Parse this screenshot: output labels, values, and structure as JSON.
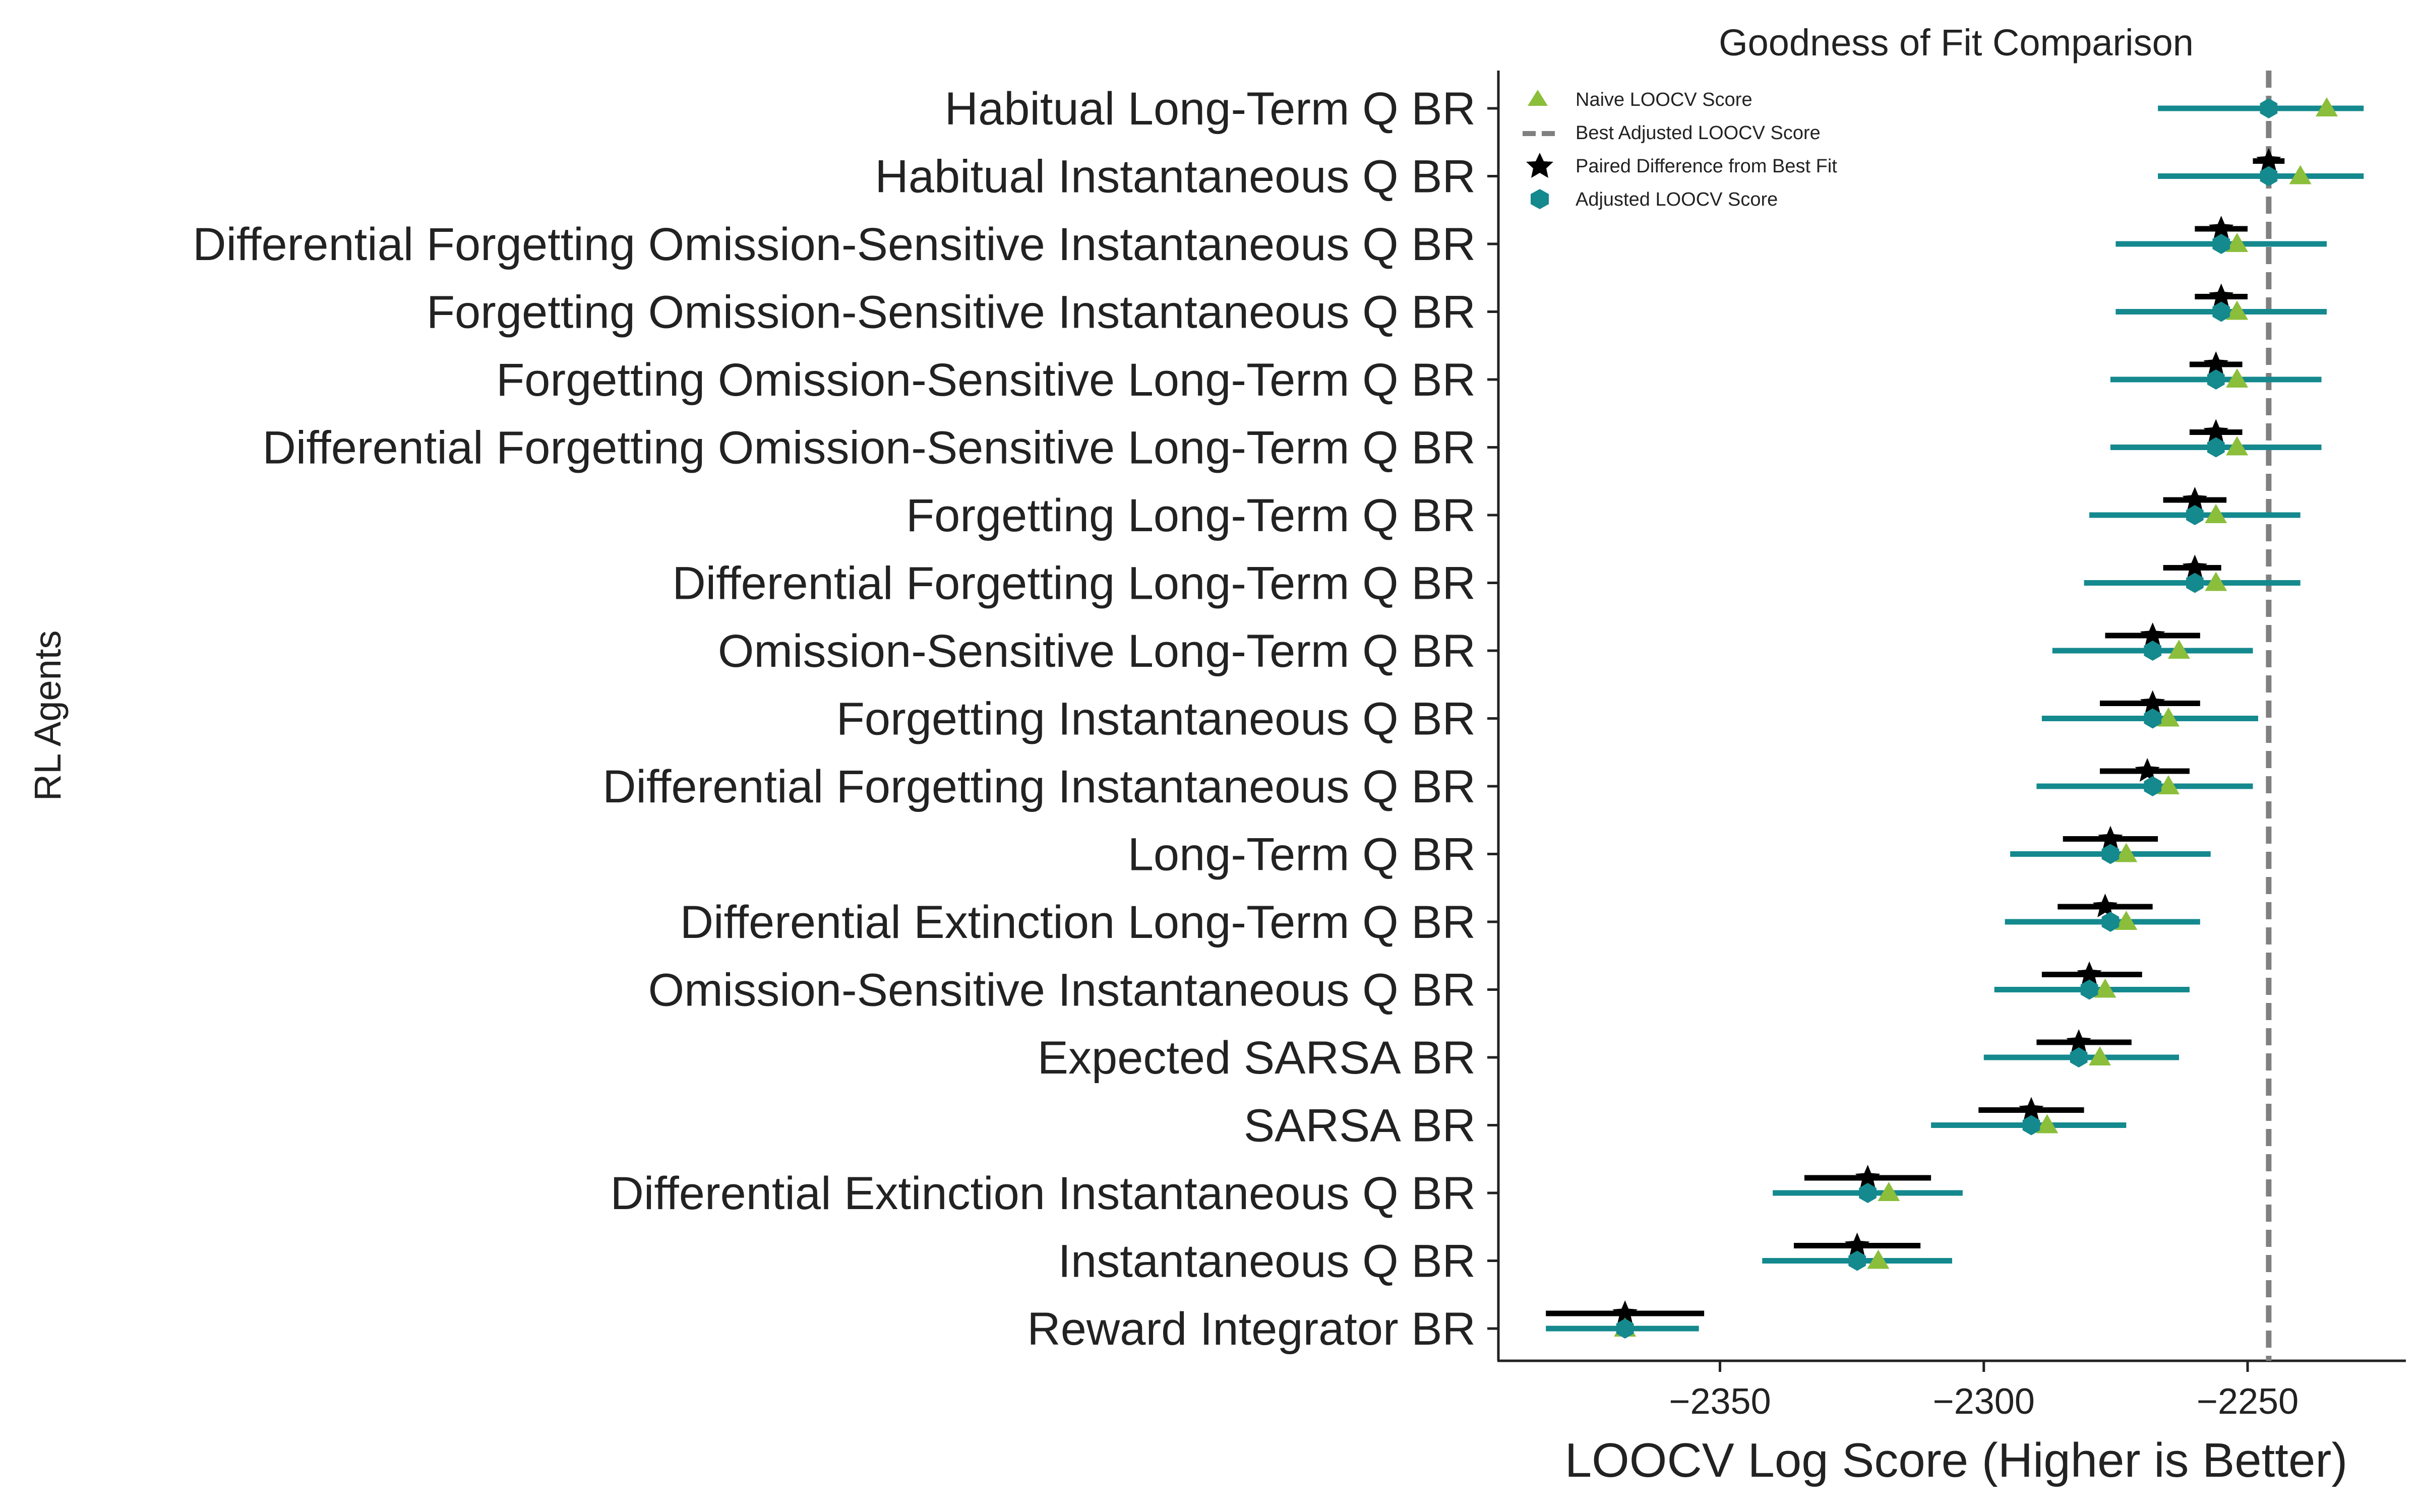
{
  "chart_data": {
    "type": "scatter",
    "title": "Goodness of Fit Comparison",
    "xlabel": "LOOCV Log Score (Higher is Better)",
    "ylabel": "RL Agents",
    "xlim": [
      -2392,
      -2220
    ],
    "xticks": [
      -2350,
      -2300,
      -2250
    ],
    "xtick_labels": [
      "−2350",
      "−2300",
      "−2250"
    ],
    "grid": false,
    "legend_position": "upper-left",
    "best_adjusted_loocv": -2246,
    "legend": [
      {
        "label": "Naive LOOCV Score",
        "marker": "triangle",
        "color": "#8bbe3a"
      },
      {
        "label": "Best Adjusted LOOCV Score",
        "marker": "dashed-line",
        "color": "#808080"
      },
      {
        "label": "Paired Difference from Best Fit",
        "marker": "star",
        "color": "#000000"
      },
      {
        "label": "Adjusted LOOCV Score",
        "marker": "hexagon",
        "color": "#14898e"
      }
    ],
    "colors": {
      "naive": "#8bbe3a",
      "adjusted": "#14898e",
      "paired": "#000000",
      "best_line": "#808080"
    },
    "categories": [
      "Habitual Long-Term Q BR",
      "Habitual Instantaneous Q BR",
      "Differential Forgetting Omission-Sensitive Instantaneous Q BR",
      "Forgetting Omission-Sensitive Instantaneous Q BR",
      "Forgetting Omission-Sensitive Long-Term Q BR",
      "Differential Forgetting Omission-Sensitive Long-Term Q BR",
      "Forgetting Long-Term Q BR",
      "Differential Forgetting Long-Term Q BR",
      "Omission-Sensitive Long-Term Q BR",
      "Forgetting Instantaneous Q BR",
      "Differential Forgetting Instantaneous Q BR",
      "Long-Term Q BR",
      "Differential Extinction Long-Term Q BR",
      "Omission-Sensitive Instantaneous Q BR",
      "Expected SARSA BR",
      "SARSA BR",
      "Differential Extinction Instantaneous Q BR",
      "Instantaneous Q BR",
      "Reward Integrator BR"
    ],
    "series": [
      {
        "name": "Naive LOOCV Score",
        "values": [
          -2235,
          -2240,
          -2252,
          -2252,
          -2252,
          -2252,
          -2256,
          -2256,
          -2263,
          -2265,
          -2265,
          -2273,
          -2273,
          -2277,
          -2278,
          -2288,
          -2318,
          -2320,
          -2368
        ]
      },
      {
        "name": "Adjusted LOOCV Score",
        "values": [
          -2246,
          -2246,
          -2255,
          -2255,
          -2256,
          -2256,
          -2260,
          -2260,
          -2268,
          -2268,
          -2268,
          -2276,
          -2276,
          -2280,
          -2282,
          -2291,
          -2322,
          -2324,
          -2368
        ],
        "err_low": [
          -2267,
          -2267,
          -2275,
          -2275,
          -2276,
          -2276,
          -2280,
          -2281,
          -2287,
          -2289,
          -2290,
          -2295,
          -2296,
          -2298,
          -2300,
          -2310,
          -2340,
          -2342,
          -2383
        ],
        "err_high": [
          -2228,
          -2228,
          -2235,
          -2235,
          -2236,
          -2236,
          -2240,
          -2240,
          -2249,
          -2248,
          -2249,
          -2257,
          -2259,
          -2261,
          -2263,
          -2273,
          -2304,
          -2306,
          -2354
        ]
      },
      {
        "name": "Paired Difference from Best Fit",
        "values": [
          null,
          -2246,
          -2255,
          -2255,
          -2256,
          -2256,
          -2260,
          -2260,
          -2268,
          -2268,
          -2269,
          -2276,
          -2277,
          -2280,
          -2282,
          -2291,
          -2322,
          -2324,
          -2368
        ],
        "err_low": [
          null,
          -2249,
          -2260,
          -2260,
          -2261,
          -2261,
          -2266,
          -2266,
          -2277,
          -2278,
          -2278,
          -2285,
          -2286,
          -2289,
          -2290,
          -2301,
          -2334,
          -2336,
          -2383
        ],
        "err_high": [
          null,
          -2243,
          -2250,
          -2250,
          -2251,
          -2251,
          -2254,
          -2255,
          -2259,
          -2259,
          -2261,
          -2267,
          -2268,
          -2270,
          -2272,
          -2281,
          -2310,
          -2312,
          -2353
        ]
      }
    ]
  }
}
